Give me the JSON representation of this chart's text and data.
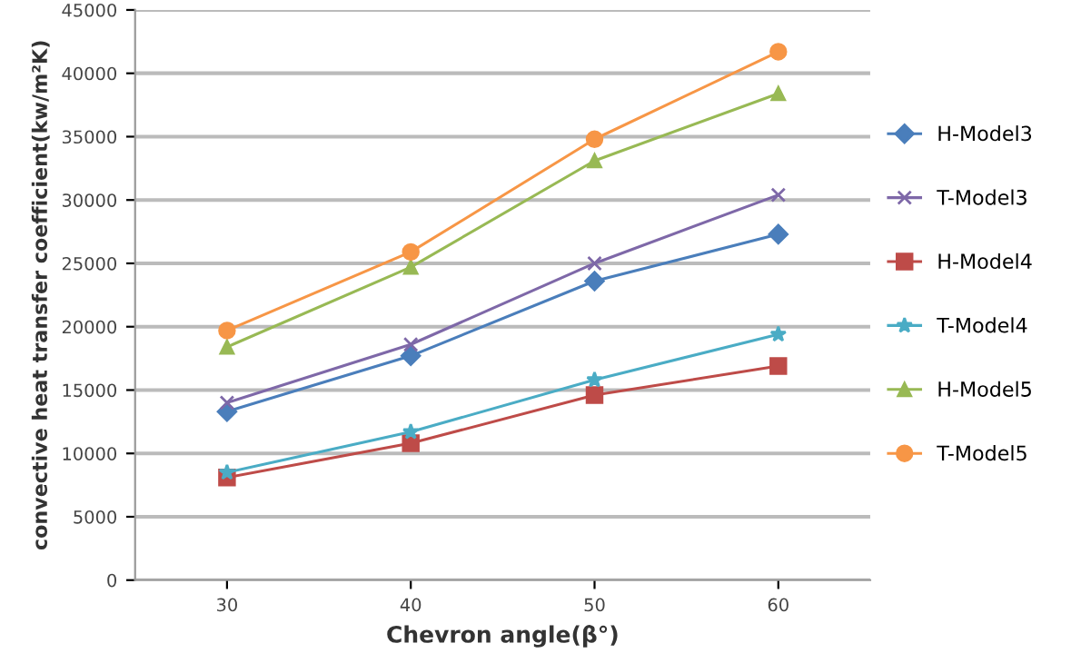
{
  "chart_data": {
    "type": "line",
    "xlabel": "Chevron angle(β°)",
    "ylabel": "convective heat transfer coefficient(kw/m²K)",
    "categories": [
      "30",
      "40",
      "50",
      "60"
    ],
    "series": [
      {
        "name": "H-Model3",
        "color": "#4a7ebb",
        "marker": "diamond",
        "values": [
          13300,
          17700,
          23600,
          27300
        ]
      },
      {
        "name": "T-Model3",
        "color": "#7e68a8",
        "marker": "cross",
        "values": [
          14000,
          18600,
          25000,
          30400
        ]
      },
      {
        "name": "H-Model4",
        "color": "#be4b48",
        "marker": "square",
        "values": [
          8100,
          10800,
          14600,
          16900
        ]
      },
      {
        "name": "T-Model4",
        "color": "#4aacc5",
        "marker": "star",
        "values": [
          8500,
          11700,
          15800,
          19400
        ]
      },
      {
        "name": "H-Model5",
        "color": "#98b954",
        "marker": "triangle",
        "values": [
          18400,
          24700,
          33100,
          38400
        ]
      },
      {
        "name": "T-Model5",
        "color": "#f79646",
        "marker": "circle",
        "values": [
          19700,
          25900,
          34800,
          41700
        ]
      }
    ],
    "ylim": [
      0,
      45000
    ],
    "yticks": [
      0,
      5000,
      10000,
      15000,
      20000,
      25000,
      30000,
      35000,
      40000,
      45000
    ],
    "grid": "y",
    "legend": "right"
  }
}
